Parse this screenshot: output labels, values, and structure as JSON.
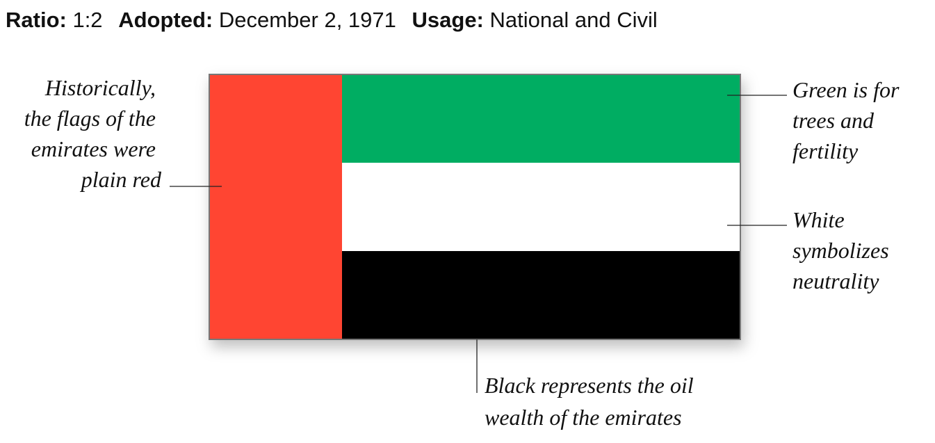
{
  "header": {
    "ratio_label": "Ratio:",
    "ratio": "1:2",
    "adopted_label": "Adopted:",
    "adopted": "December 2, 1971",
    "usage_label": "Usage:",
    "usage": "National and Civil"
  },
  "annotations": {
    "red": [
      "Historically,",
      "the flags of the",
      "emirates were",
      "plain red"
    ],
    "green": [
      "Green is for",
      "trees and",
      "fertility"
    ],
    "white": [
      "White",
      "symbolizes",
      "neutrality"
    ],
    "black": [
      "Black represents the oil",
      "wealth of the emirates"
    ]
  }
}
